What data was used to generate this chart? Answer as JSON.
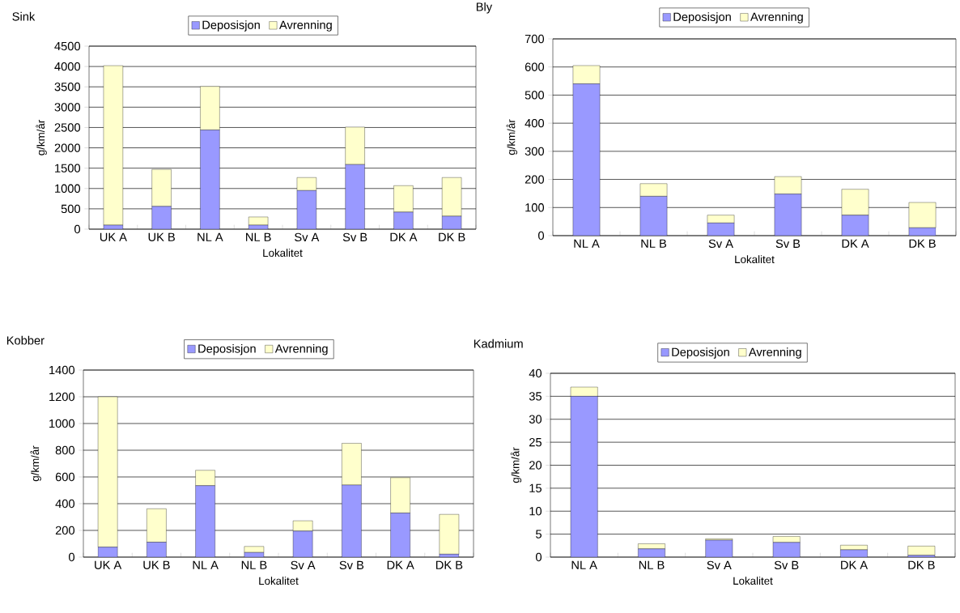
{
  "chart_data": [
    {
      "type": "bar",
      "stacked": true,
      "title": "Sink",
      "xlabel": "Lokalitet",
      "ylabel": "g/km/år",
      "categories": [
        "UK A",
        "UK B",
        "NL A",
        "NL B",
        "Sv A",
        "Sv B",
        "DK A",
        "DK B"
      ],
      "series": [
        {
          "name": "Deposisjon",
          "color": "#9999ff",
          "values": [
            100,
            560,
            2440,
            100,
            950,
            1590,
            420,
            320
          ]
        },
        {
          "name": "Avrenning",
          "color": "#ffffcc",
          "values": [
            3920,
            910,
            1070,
            200,
            320,
            920,
            650,
            950
          ]
        }
      ],
      "ylim": [
        0,
        4500
      ],
      "yticks": [
        0,
        500,
        1000,
        1500,
        2000,
        2500,
        3000,
        3500,
        4000,
        4500
      ],
      "grid": "y",
      "legend": "top"
    },
    {
      "type": "bar",
      "stacked": true,
      "title": "Bly",
      "xlabel": "Lokalitet",
      "ylabel": "g/km/år",
      "categories": [
        "NL A",
        "NL B",
        "Sv A",
        "Sv B",
        "DK A",
        "DK B"
      ],
      "series": [
        {
          "name": "Deposisjon",
          "color": "#9999ff",
          "values": [
            540,
            140,
            45,
            148,
            73,
            28
          ]
        },
        {
          "name": "Avrenning",
          "color": "#ffffcc",
          "values": [
            65,
            45,
            28,
            62,
            92,
            90
          ]
        }
      ],
      "ylim": [
        0,
        700
      ],
      "yticks": [
        0,
        100,
        200,
        300,
        400,
        500,
        600,
        700
      ],
      "grid": "y",
      "legend": "top"
    },
    {
      "type": "bar",
      "stacked": true,
      "title": "Kobber",
      "xlabel": "Lokalitet",
      "ylabel": "g/km/år",
      "categories": [
        "UK A",
        "UK B",
        "NL A",
        "NL B",
        "Sv A",
        "Sv B",
        "DK A",
        "DK B"
      ],
      "series": [
        {
          "name": "Deposisjon",
          "color": "#9999ff",
          "values": [
            75,
            112,
            535,
            35,
            195,
            540,
            330,
            22
          ]
        },
        {
          "name": "Avrenning",
          "color": "#ffffcc",
          "values": [
            1125,
            250,
            115,
            45,
            77,
            312,
            265,
            298
          ]
        }
      ],
      "ylim": [
        0,
        1400
      ],
      "yticks": [
        0,
        200,
        400,
        600,
        800,
        1000,
        1200,
        1400
      ],
      "grid": "y",
      "legend": "top"
    },
    {
      "type": "bar",
      "stacked": true,
      "title": "Kadmium",
      "xlabel": "Lokalitet",
      "ylabel": "g/km/år",
      "categories": [
        "NL A",
        "NL B",
        "Sv A",
        "Sv B",
        "DK A",
        "DK B"
      ],
      "series": [
        {
          "name": "Deposisjon",
          "color": "#9999ff",
          "values": [
            35,
            1.8,
            3.7,
            3.2,
            1.6,
            0.4
          ]
        },
        {
          "name": "Avrenning",
          "color": "#ffffcc",
          "values": [
            2,
            1.1,
            0.3,
            1.3,
            1.0,
            2.0
          ]
        }
      ],
      "ylim": [
        0,
        40
      ],
      "yticks": [
        0,
        5,
        10,
        15,
        20,
        25,
        30,
        35,
        40
      ],
      "grid": "y",
      "legend": "top"
    }
  ]
}
